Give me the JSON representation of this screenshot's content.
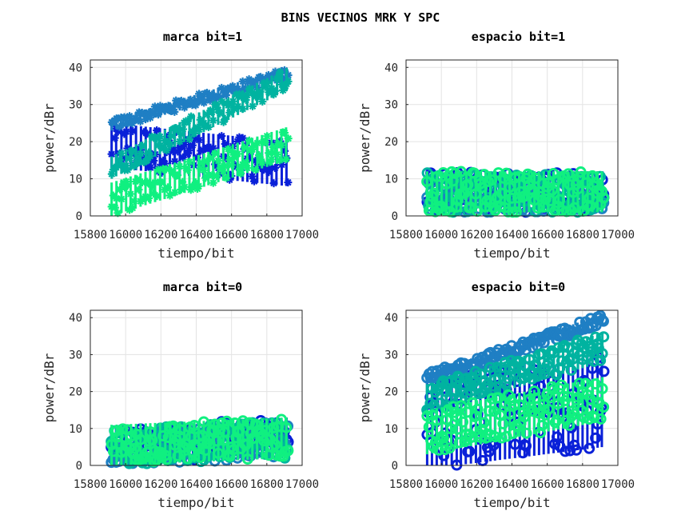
{
  "suptitle": "BINS VECINOS MRK Y SPC",
  "chart_data": [
    {
      "type": "scatter",
      "title": "marca bit=1",
      "xlabel": "tiempo/bit",
      "ylabel": "power/dBr",
      "xlim": [
        15800,
        17000
      ],
      "ylim": [
        0,
        42
      ],
      "xticks": [
        "15800",
        "16000",
        "16200",
        "16400",
        "16600",
        "16800",
        "17000"
      ],
      "yticks": [
        "0",
        "10",
        "20",
        "30",
        "40"
      ],
      "grid": true,
      "marker": "asterisk",
      "x_range": [
        15920,
        16920
      ],
      "series": [
        {
          "color": "#0a20d8",
          "start_range": [
            8,
            25
          ],
          "end_range": [
            5,
            20
          ],
          "low": 0,
          "spread": 12,
          "peaks": [
            [
              16400,
              17
            ],
            [
              16600,
              14
            ]
          ]
        },
        {
          "color": "#1f7fc4",
          "start_range": [
            21,
            26
          ],
          "end_range": [
            36,
            40
          ],
          "low": 15,
          "spread": 3,
          "peaks": []
        },
        {
          "color": "#00b3a0",
          "start_range": [
            3,
            16
          ],
          "end_range": [
            27,
            40
          ],
          "low": 8,
          "spread": 6,
          "peaks": []
        },
        {
          "color": "#10f080",
          "start_range": [
            0,
            9
          ],
          "end_range": [
            12,
            24
          ],
          "low": 0,
          "spread": 9,
          "peaks": []
        }
      ]
    },
    {
      "type": "scatter",
      "title": "espacio bit=1",
      "xlabel": "tiempo/bit",
      "ylabel": "power/dBr",
      "xlim": [
        15800,
        17000
      ],
      "ylim": [
        0,
        42
      ],
      "xticks": [
        "15800",
        "16000",
        "16200",
        "16400",
        "16600",
        "16800",
        "17000"
      ],
      "yticks": [
        "0",
        "10",
        "20",
        "30",
        "40"
      ],
      "grid": true,
      "marker": "circle",
      "x_range": [
        15920,
        16920
      ],
      "series": [
        {
          "color": "#0a20d8",
          "start_range": [
            0,
            12
          ],
          "end_range": [
            0,
            12
          ],
          "low": 0,
          "spread": 11,
          "peaks": []
        },
        {
          "color": "#1f7fc4",
          "start_range": [
            0,
            10
          ],
          "end_range": [
            0,
            10
          ],
          "low": 0,
          "spread": 9,
          "peaks": []
        },
        {
          "color": "#00b3a0",
          "start_range": [
            0,
            12
          ],
          "end_range": [
            0,
            12
          ],
          "low": 0,
          "spread": 11,
          "peaks": []
        },
        {
          "color": "#10f080",
          "start_range": [
            0,
            12
          ],
          "end_range": [
            0,
            12
          ],
          "low": 0,
          "spread": 11,
          "peaks": []
        }
      ]
    },
    {
      "type": "scatter",
      "title": "marca bit=0",
      "xlabel": "tiempo/bit",
      "ylabel": "power/dBr",
      "xlim": [
        15800,
        17000
      ],
      "ylim": [
        0,
        42
      ],
      "xticks": [
        "15800",
        "16000",
        "16200",
        "16400",
        "16600",
        "16800",
        "17000"
      ],
      "yticks": [
        "0",
        "10",
        "20",
        "30",
        "40"
      ],
      "grid": true,
      "marker": "circle",
      "x_range": [
        15920,
        16920
      ],
      "series": [
        {
          "color": "#0a20d8",
          "start_range": [
            0,
            10
          ],
          "end_range": [
            0,
            13
          ],
          "low": 0,
          "spread": 10,
          "peaks": []
        },
        {
          "color": "#1f7fc4",
          "start_range": [
            0,
            9
          ],
          "end_range": [
            0,
            11
          ],
          "low": 0,
          "spread": 9,
          "peaks": []
        },
        {
          "color": "#00b3a0",
          "start_range": [
            0,
            10
          ],
          "end_range": [
            0,
            12
          ],
          "low": 0,
          "spread": 10,
          "peaks": []
        },
        {
          "color": "#10f080",
          "start_range": [
            0,
            11
          ],
          "end_range": [
            0,
            13
          ],
          "low": 0,
          "spread": 11,
          "peaks": [
            [
              16620,
              14
            ]
          ]
        }
      ]
    },
    {
      "type": "scatter",
      "title": "espacio bit=0",
      "xlabel": "tiempo/bit",
      "ylabel": "power/dBr",
      "xlim": [
        15800,
        17000
      ],
      "ylim": [
        0,
        42
      ],
      "xticks": [
        "15800",
        "16000",
        "16200",
        "16400",
        "16600",
        "16800",
        "17000"
      ],
      "yticks": [
        "0",
        "10",
        "20",
        "30",
        "40"
      ],
      "grid": true,
      "marker": "circle",
      "x_range": [
        15920,
        16920
      ],
      "series": [
        {
          "color": "#0a20d8",
          "start_range": [
            2,
            24
          ],
          "end_range": [
            0,
            30
          ],
          "low": 0,
          "spread": 25,
          "peaks": []
        },
        {
          "color": "#1f7fc4",
          "start_range": [
            22,
            25
          ],
          "end_range": [
            39,
            41
          ],
          "low": 18,
          "spread": 3,
          "peaks": []
        },
        {
          "color": "#00b3a0",
          "start_range": [
            10,
            22
          ],
          "end_range": [
            27,
            36
          ],
          "low": 8,
          "spread": 8,
          "peaks": []
        },
        {
          "color": "#10f080",
          "start_range": [
            0,
            15
          ],
          "end_range": [
            10,
            24
          ],
          "low": 0,
          "spread": 12,
          "peaks": []
        }
      ]
    }
  ]
}
